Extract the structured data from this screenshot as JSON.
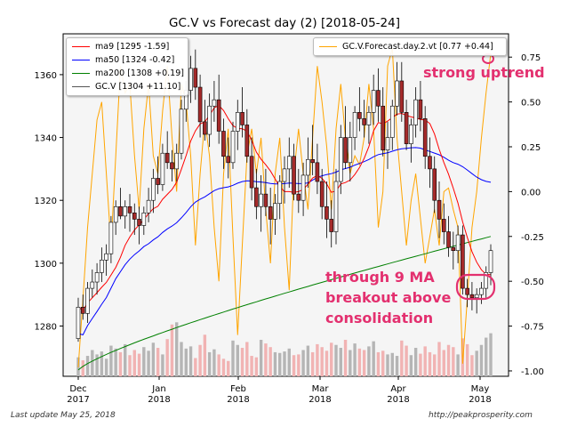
{
  "chart_data": {
    "type": "candlestick",
    "title": "GC.V vs Forecast day (2)  [2018-05-24]",
    "x_tick_labels": [
      [
        "Dec",
        "2017"
      ],
      [
        "Jan",
        "2018"
      ],
      [
        "Feb",
        "2018"
      ],
      [
        "Mar",
        "2018"
      ],
      [
        "Apr",
        "2018"
      ],
      [
        "May",
        "2018"
      ]
    ],
    "y_left": {
      "lim": [
        1264,
        1373
      ],
      "ticks": [
        1280,
        1300,
        1320,
        1340,
        1360
      ]
    },
    "y_right": {
      "lim": [
        -1.03,
        0.88
      ],
      "ticks": [
        "0.75",
        "0.50",
        "0.25",
        "0.00",
        "-0.25",
        "-0.50",
        "-0.75",
        "-1.00"
      ],
      "tick_values": [
        0.75,
        0.5,
        0.25,
        0,
        -0.25,
        -0.5,
        -0.75,
        -1.0
      ]
    },
    "legend_left": [
      {
        "label": "ma9 [1295 -1.59]",
        "color": "#ff0000"
      },
      {
        "label": "ma50 [1324 -0.42]",
        "color": "#0000ff"
      },
      {
        "label": "ma200 [1308 +0.19]",
        "color": "#008000"
      },
      {
        "label": "GC.V [1304 +11.10]",
        "color": "#555555"
      }
    ],
    "legend_right": [
      {
        "label": "GC.V.Forecast.day.2.vt [0.77 +0.44]",
        "color": "#ffa500"
      }
    ],
    "annotations": {
      "top_right": "strong uptrend",
      "bottom_lines": [
        "through 9 MA",
        "breakout above",
        "consolidation"
      ]
    },
    "ohlc": [
      [
        1276,
        1289,
        1275,
        1286
      ],
      [
        1286,
        1290,
        1282,
        1284
      ],
      [
        1284,
        1294,
        1281,
        1292
      ],
      [
        1292,
        1298,
        1289,
        1294
      ],
      [
        1294,
        1300,
        1290,
        1297
      ],
      [
        1297,
        1305,
        1294,
        1301
      ],
      [
        1301,
        1306,
        1296,
        1303
      ],
      [
        1303,
        1315,
        1300,
        1313
      ],
      [
        1313,
        1320,
        1309,
        1318
      ],
      [
        1318,
        1324,
        1314,
        1315
      ],
      [
        1315,
        1320,
        1311,
        1318
      ],
      [
        1318,
        1322,
        1310,
        1316
      ],
      [
        1316,
        1319,
        1309,
        1314
      ],
      [
        1314,
        1318,
        1306,
        1312
      ],
      [
        1312,
        1318,
        1309,
        1316
      ],
      [
        1316,
        1324,
        1313,
        1320
      ],
      [
        1320,
        1330,
        1316,
        1327
      ],
      [
        1327,
        1334,
        1322,
        1325
      ],
      [
        1325,
        1338,
        1323,
        1335
      ],
      [
        1335,
        1342,
        1330,
        1332
      ],
      [
        1332,
        1336,
        1326,
        1330
      ],
      [
        1330,
        1338,
        1326,
        1335
      ],
      [
        1335,
        1352,
        1333,
        1349
      ],
      [
        1349,
        1358,
        1345,
        1355
      ],
      [
        1355,
        1366,
        1351,
        1362
      ],
      [
        1362,
        1368,
        1352,
        1356
      ],
      [
        1356,
        1360,
        1340,
        1345
      ],
      [
        1345,
        1352,
        1339,
        1341
      ],
      [
        1341,
        1354,
        1337,
        1350
      ],
      [
        1350,
        1358,
        1345,
        1352
      ],
      [
        1352,
        1360,
        1338,
        1342
      ],
      [
        1342,
        1346,
        1330,
        1334
      ],
      [
        1334,
        1340,
        1327,
        1332
      ],
      [
        1332,
        1345,
        1330,
        1342
      ],
      [
        1342,
        1352,
        1336,
        1348
      ],
      [
        1348,
        1356,
        1340,
        1344
      ],
      [
        1344,
        1349,
        1332,
        1334
      ],
      [
        1334,
        1340,
        1320,
        1324
      ],
      [
        1324,
        1330,
        1314,
        1318
      ],
      [
        1318,
        1328,
        1310,
        1322
      ],
      [
        1322,
        1330,
        1315,
        1318
      ],
      [
        1318,
        1324,
        1306,
        1314
      ],
      [
        1314,
        1322,
        1309,
        1319
      ],
      [
        1319,
        1328,
        1314,
        1326
      ],
      [
        1326,
        1334,
        1319,
        1330
      ],
      [
        1330,
        1340,
        1324,
        1334
      ],
      [
        1334,
        1338,
        1320,
        1322
      ],
      [
        1322,
        1330,
        1316,
        1320
      ],
      [
        1320,
        1332,
        1315,
        1328
      ],
      [
        1328,
        1340,
        1324,
        1333
      ],
      [
        1333,
        1344,
        1328,
        1332
      ],
      [
        1332,
        1338,
        1322,
        1326
      ],
      [
        1326,
        1330,
        1314,
        1318
      ],
      [
        1318,
        1326,
        1308,
        1314
      ],
      [
        1314,
        1320,
        1305,
        1310
      ],
      [
        1310,
        1330,
        1306,
        1326
      ],
      [
        1326,
        1344,
        1322,
        1340
      ],
      [
        1340,
        1350,
        1330,
        1332
      ],
      [
        1332,
        1345,
        1326,
        1340
      ],
      [
        1340,
        1350,
        1336,
        1348
      ],
      [
        1348,
        1356,
        1342,
        1346
      ],
      [
        1346,
        1352,
        1340,
        1344
      ],
      [
        1344,
        1350,
        1338,
        1348
      ],
      [
        1348,
        1360,
        1344,
        1355
      ],
      [
        1355,
        1362,
        1345,
        1350
      ],
      [
        1350,
        1356,
        1334,
        1336
      ],
      [
        1336,
        1345,
        1330,
        1340
      ],
      [
        1340,
        1352,
        1336,
        1350
      ],
      [
        1350,
        1364,
        1347,
        1358
      ],
      [
        1358,
        1364,
        1345,
        1348
      ],
      [
        1348,
        1352,
        1336,
        1338
      ],
      [
        1338,
        1346,
        1332,
        1344
      ],
      [
        1344,
        1356,
        1340,
        1352
      ],
      [
        1352,
        1358,
        1342,
        1346
      ],
      [
        1346,
        1350,
        1330,
        1334
      ],
      [
        1334,
        1340,
        1324,
        1330
      ],
      [
        1330,
        1334,
        1316,
        1320
      ],
      [
        1320,
        1326,
        1308,
        1314
      ],
      [
        1314,
        1319,
        1306,
        1310
      ],
      [
        1310,
        1315,
        1302,
        1305
      ],
      [
        1305,
        1310,
        1298,
        1304
      ],
      [
        1304,
        1312,
        1300,
        1309
      ],
      [
        1309,
        1312,
        1290,
        1292
      ],
      [
        1292,
        1295,
        1286,
        1290
      ],
      [
        1290,
        1294,
        1285,
        1289
      ],
      [
        1289,
        1292,
        1284,
        1290
      ],
      [
        1290,
        1294,
        1287,
        1292
      ],
      [
        1292,
        1299,
        1289,
        1297
      ],
      [
        1297,
        1306,
        1293,
        1304
      ]
    ],
    "forecast": [
      -0.98,
      -0.6,
      -0.2,
      0.1,
      0.4,
      0.5,
      0.1,
      -0.3,
      0.2,
      0.7,
      0.55,
      0.6,
      0.2,
      -0.1,
      0.35,
      0.6,
      0.2,
      0.1,
      0.45,
      0.7,
      0.3,
      0.0,
      0.6,
      0.5,
      0.2,
      -0.3,
      0.1,
      0.4,
      0.2,
      -0.2,
      -0.5,
      0.1,
      0.35,
      -0.25,
      -0.8,
      -0.3,
      0.2,
      0.35,
      0.1,
      0.3,
      -0.1,
      -0.4,
      0.1,
      0.3,
      -0.2,
      -0.55,
      0.1,
      0.35,
      0.1,
      -0.1,
      0.3,
      0.7,
      0.5,
      0.25,
      -0.1,
      0.35,
      0.6,
      0.3,
      0.1,
      0.2,
      0.15,
      0.3,
      0.6,
      0.35,
      -0.2,
      0.0,
      0.7,
      0.8,
      0.3,
      0.0,
      -0.3,
      -0.05,
      0.1,
      -0.15,
      -0.4,
      -0.25,
      -0.1,
      -0.3,
      0.0,
      0.02,
      -0.1,
      -0.2,
      -0.96,
      -0.6,
      -0.2,
      0.0,
      0.3,
      0.55,
      0.77
    ],
    "volume": [
      0.26,
      0.22,
      0.28,
      0.36,
      0.3,
      0.34,
      0.24,
      0.42,
      0.38,
      0.33,
      0.44,
      0.29,
      0.36,
      0.31,
      0.4,
      0.35,
      0.46,
      0.39,
      0.3,
      0.51,
      0.71,
      0.74,
      0.47,
      0.38,
      0.41,
      0.25,
      0.43,
      0.57,
      0.33,
      0.37,
      0.3,
      0.24,
      0.21,
      0.49,
      0.43,
      0.39,
      0.47,
      0.28,
      0.26,
      0.5,
      0.45,
      0.4,
      0.33,
      0.32,
      0.34,
      0.38,
      0.29,
      0.3,
      0.36,
      0.42,
      0.33,
      0.44,
      0.4,
      0.35,
      0.46,
      0.43,
      0.39,
      0.5,
      0.36,
      0.45,
      0.38,
      0.36,
      0.41,
      0.48,
      0.33,
      0.35,
      0.3,
      0.32,
      0.28,
      0.49,
      0.42,
      0.29,
      0.39,
      0.31,
      0.41,
      0.33,
      0.3,
      0.47,
      0.36,
      0.43,
      0.4,
      0.3,
      0.52,
      0.44,
      0.29,
      0.35,
      0.43,
      0.53,
      0.59
    ]
  },
  "footer": {
    "left": "Last update May 25, 2018",
    "right": "http://peakprosperity.com"
  }
}
